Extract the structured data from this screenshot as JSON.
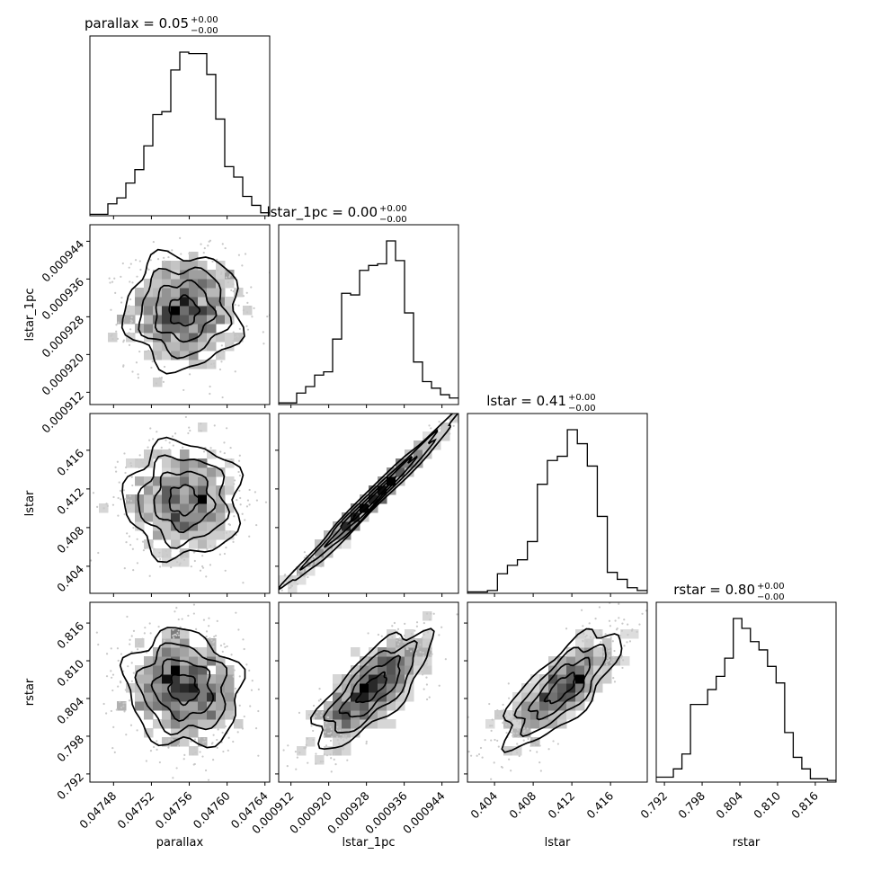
{
  "chart_data": {
    "type": "corner",
    "params": [
      {
        "name": "parallax",
        "range": [
          0.047455,
          0.047645
        ],
        "ticks": [
          "0.04748",
          "0.04752",
          "0.04756",
          "0.04760",
          "0.04764"
        ],
        "tick_values": [
          0.04748,
          0.04752,
          0.04756,
          0.0476,
          0.04764
        ],
        "title_main": "parallax = 0.05",
        "title_sup": "+0.00",
        "title_sub": "−0.00",
        "hist_counts": [
          1,
          1,
          8,
          12,
          22,
          31,
          47,
          68,
          70,
          98,
          110,
          109,
          109,
          95,
          65,
          33,
          26,
          13,
          7,
          2
        ]
      },
      {
        "name": "lstar_1pc",
        "range": [
          0.0009094,
          0.0009475
        ],
        "ticks": [
          "0.000912",
          "0.000920",
          "0.000928",
          "0.000936",
          "0.000944"
        ],
        "tick_values": [
          0.000912,
          0.00092,
          0.000928,
          0.000936,
          0.000944
        ],
        "title_main": "lstar_1pc = 0.00",
        "title_sup": "+0.00",
        "title_sub": "−0.00",
        "hist_counts": [
          1,
          1,
          7,
          11,
          18,
          20,
          40,
          68,
          67,
          82,
          85,
          86,
          100,
          88,
          56,
          26,
          14,
          10,
          6,
          4
        ]
      },
      {
        "name": "lstar",
        "range": [
          0.4012,
          0.4198
        ],
        "ticks": [
          "0.404",
          "0.408",
          "0.412",
          "0.416"
        ],
        "tick_values": [
          0.404,
          0.408,
          0.412,
          0.416
        ],
        "title_main": "lstar = 0.41",
        "title_sup": "+0.00",
        "title_sub": "−0.00",
        "hist_counts": [
          1,
          1,
          2,
          14,
          20,
          24,
          37,
          78,
          95,
          98,
          117,
          107,
          91,
          55,
          15,
          10,
          4,
          2
        ]
      },
      {
        "name": "rstar",
        "range": [
          0.7907,
          0.8193
        ],
        "ticks": [
          "0.792",
          "0.798",
          "0.804",
          "0.810",
          "0.816"
        ],
        "tick_values": [
          0.792,
          0.798,
          0.804,
          0.81,
          0.816
        ],
        "title_main": "rstar = 0.80",
        "title_sup": "+0.00",
        "title_sub": "−0.00",
        "hist_counts": [
          3,
          3,
          8,
          17,
          47,
          47,
          56,
          64,
          75,
          99,
          93,
          85,
          80,
          70,
          60,
          30,
          15,
          8,
          2,
          2,
          1
        ]
      }
    ],
    "pairs": [
      {
        "x": "parallax",
        "y": "lstar_1pc",
        "correlation": 0.0
      },
      {
        "x": "parallax",
        "y": "lstar",
        "correlation": 0.0
      },
      {
        "x": "lstar_1pc",
        "y": "lstar",
        "correlation": 0.99
      },
      {
        "x": "parallax",
        "y": "rstar",
        "correlation": -0.1
      },
      {
        "x": "lstar_1pc",
        "y": "rstar",
        "correlation": 0.75
      },
      {
        "x": "lstar",
        "y": "rstar",
        "correlation": 0.75
      }
    ]
  }
}
